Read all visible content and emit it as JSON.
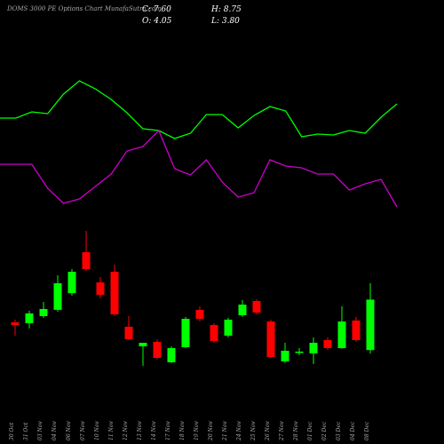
{
  "chart_data": {
    "type": "candlestick",
    "title": "DOMS 3000 PE Options Chart MunafaSutra.com",
    "info": {
      "close": "C: 7.60",
      "high": "H: 8.75",
      "open": "O: 4.05",
      "low": "L: 3.80"
    },
    "categories": [
      "30 Oct",
      "31 Oct",
      "03 Nov",
      "04 Nov",
      "06 Nov",
      "07 Nov",
      "10 Nov",
      "11 Nov",
      "12 Nov",
      "13 Nov",
      "14 Nov",
      "17 Nov",
      "18 Nov",
      "19 Nov",
      "20 Nov",
      "21 Nov",
      "24 Nov",
      "25 Nov",
      "26 Nov",
      "27 Nov",
      "28 Nov",
      "01 Dec",
      "02 Dec",
      "03 Dec",
      "04 Dec",
      "08 Dec"
    ],
    "open": [
      6.0,
      5.94,
      6.44,
      6.88,
      8.06,
      10.94,
      8.81,
      9.56,
      5.69,
      4.31,
      4.63,
      3.19,
      4.25,
      6.88,
      5.81,
      5.06,
      6.5,
      7.5,
      6.06,
      3.25,
      3.88,
      3.81,
      4.75,
      4.19,
      6.13,
      4.05
    ],
    "high": [
      6.19,
      6.81,
      7.44,
      9.31,
      9.75,
      12.44,
      9.19,
      10.06,
      6.44,
      4.56,
      4.81,
      4.31,
      6.38,
      7.13,
      5.94,
      6.31,
      7.56,
      7.63,
      6.19,
      4.56,
      4.19,
      4.94,
      4.94,
      7.13,
      6.38,
      8.75
    ],
    "low": [
      5.06,
      5.56,
      6.31,
      6.75,
      7.88,
      9.63,
      7.69,
      6.44,
      4.75,
      2.94,
      3.38,
      3.13,
      4.19,
      6.06,
      4.56,
      4.94,
      6.38,
      6.56,
      3.5,
      3.13,
      3.69,
      3.06,
      4.06,
      4.13,
      4.63,
      3.8
    ],
    "close": [
      5.81,
      6.63,
      6.94,
      8.75,
      9.56,
      9.75,
      7.94,
      6.56,
      4.81,
      4.56,
      3.5,
      4.19,
      6.25,
      6.25,
      4.69,
      6.19,
      7.25,
      6.69,
      3.56,
      4.0,
      3.94,
      4.56,
      4.19,
      6.06,
      4.75,
      7.6
    ],
    "ylim": [
      2,
      14
    ],
    "up_color": "#00ff00",
    "down_color": "#ff0000",
    "indicators": {
      "ylim": [
        0,
        250
      ],
      "series": [
        {
          "color": "#00ff00",
          "values": [
            117,
            117,
            124,
            122,
            144,
            159,
            150,
            138,
            123,
            105,
            103,
            94,
            100,
            121,
            121,
            106,
            120,
            130,
            125,
            96,
            99,
            98,
            103,
            100,
            118,
            133
          ]
        },
        {
          "color": "#cc00cc",
          "values": [
            65,
            65,
            65,
            38,
            21,
            26,
            40,
            54,
            80,
            85,
            103,
            60,
            53,
            70,
            45,
            28,
            33,
            70,
            63,
            61,
            54,
            54,
            36,
            43,
            48,
            17
          ]
        }
      ]
    }
  }
}
